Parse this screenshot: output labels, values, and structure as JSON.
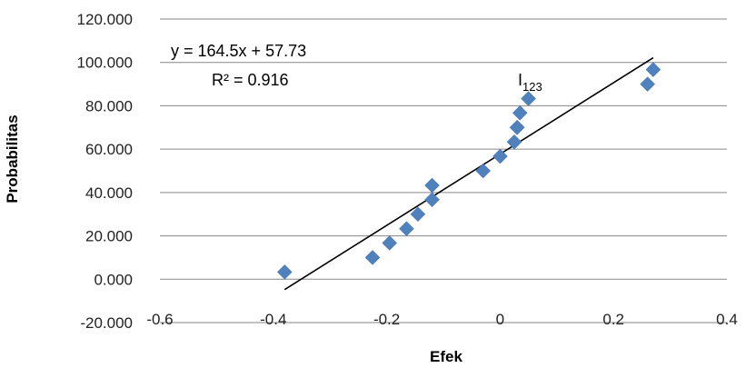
{
  "chart_data": {
    "type": "scatter",
    "xlabel": "Efek",
    "ylabel": "Probabilitas",
    "xlim": [
      -0.6,
      0.4
    ],
    "ylim": [
      -20,
      120
    ],
    "x_ticks": [
      "-0.6",
      "-0.4",
      "-0.2",
      "0",
      "0.2",
      "0.4"
    ],
    "x_tick_values": [
      -0.6,
      -0.4,
      -0.2,
      0,
      0.2,
      0.4
    ],
    "y_ticks": [
      "-20.000",
      "0.000",
      "20.000",
      "40.000",
      "60.000",
      "80.000",
      "100.000",
      "120.000"
    ],
    "y_tick_values": [
      -20,
      0,
      20,
      40,
      60,
      80,
      100,
      120
    ],
    "grid": "horizontal",
    "marker": "diamond",
    "colors": {
      "points": "#4F81BD",
      "trendline": "#000000",
      "grid": "#868686"
    },
    "series": [
      {
        "x": [
          -0.38,
          -0.225,
          -0.195,
          -0.165,
          -0.145,
          -0.12,
          -0.12,
          -0.03,
          0.0,
          0.025,
          0.03,
          0.03,
          0.035,
          0.05,
          0.26,
          0.27
        ],
        "y": [
          3.3,
          10.0,
          16.7,
          23.3,
          30.0,
          36.7,
          43.3,
          50.0,
          56.7,
          63.3,
          70.0,
          70.0,
          76.7,
          83.3,
          90.0,
          96.7
        ]
      }
    ],
    "trendline": {
      "slope": 164.5,
      "intercept": 57.73,
      "x_range": [
        -0.38,
        0.27
      ]
    },
    "annotations": {
      "equation": "y = 164.5x + 57.73",
      "r_squared": "R² = 0.916",
      "point_label_main": "I",
      "point_label_sub": "123"
    }
  }
}
